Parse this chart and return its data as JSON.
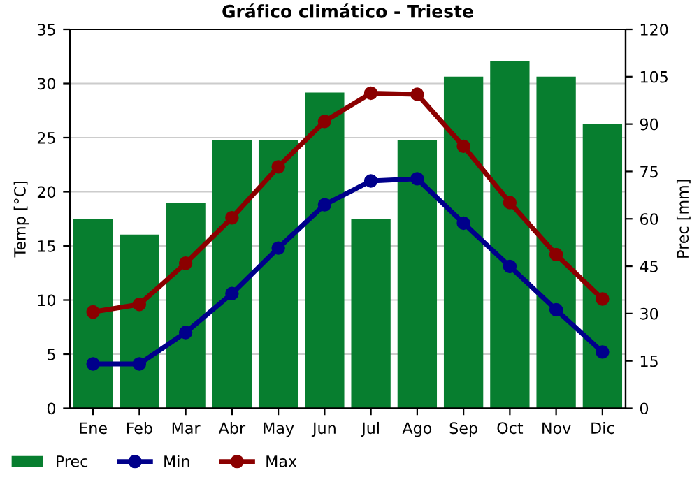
{
  "chart_data": {
    "type": "bar",
    "title": "Gráfico climático - Trieste",
    "categories": [
      "Ene",
      "Feb",
      "Mar",
      "Abr",
      "May",
      "Jun",
      "Jul",
      "Ago",
      "Sep",
      "Oct",
      "Nov",
      "Dic"
    ],
    "ylabel": "Temp [°C]",
    "y2label": "Prec [mm]",
    "ylim": [
      0,
      35
    ],
    "yticks": [
      0,
      5,
      10,
      15,
      20,
      25,
      30,
      35
    ],
    "y2lim": [
      0,
      120
    ],
    "y2ticks": [
      0,
      15,
      30,
      45,
      60,
      75,
      90,
      105,
      120
    ],
    "grid": "y",
    "legend": "bottom",
    "marker": "circle",
    "series": [
      {
        "name": "Prec",
        "axis": "y2",
        "color": "#077e2f",
        "values": [
          60,
          55,
          65,
          85,
          85,
          100,
          60,
          85,
          105,
          110,
          105,
          90
        ]
      },
      {
        "name": "Min",
        "type": "line",
        "color": "#00008b",
        "values": [
          4.1,
          4.1,
          7.0,
          10.6,
          14.8,
          18.8,
          21.0,
          21.2,
          17.1,
          13.1,
          9.1,
          5.2
        ]
      },
      {
        "name": "Max",
        "type": "line",
        "color": "#8b0000",
        "values": [
          8.9,
          9.6,
          13.4,
          17.6,
          22.3,
          26.5,
          29.1,
          29.0,
          24.2,
          19.0,
          14.2,
          10.1
        ]
      }
    ]
  }
}
